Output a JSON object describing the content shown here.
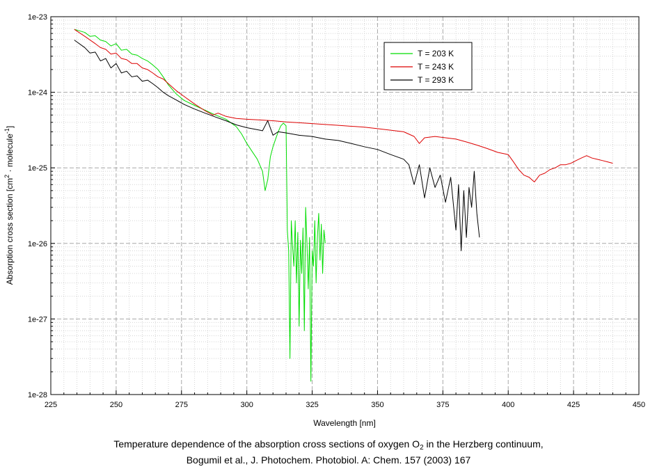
{
  "chart_data": {
    "type": "line",
    "xlabel": "Wavelength [nm]",
    "ylabel": {
      "prefix": "Absorption cross section [cm",
      "sup1": "2",
      "mid": " · molecule",
      "sup2": "-1",
      "suffix": "]"
    },
    "xlim": [
      225,
      450
    ],
    "ylim": [
      1e-28,
      1e-23
    ],
    "yscale": "log",
    "grid": true,
    "legend_position": "top-right",
    "x_ticks": [
      225,
      250,
      275,
      300,
      325,
      350,
      375,
      400,
      425,
      450
    ],
    "x_tick_labels": [
      "225",
      "250",
      "275",
      "300",
      "325",
      "350",
      "375",
      "400",
      "425",
      "450"
    ],
    "y_ticks": [
      1e-23,
      1e-24,
      1e-25,
      1e-26,
      1e-27,
      1e-28
    ],
    "y_tick_labels": [
      "1e-23",
      "1e-24",
      "1e-25",
      "1e-26",
      "1e-27",
      "1e-28"
    ],
    "series": [
      {
        "name": "T = 203 K",
        "color": "#00dd00",
        "points": [
          [
            234,
            6.8e-24
          ],
          [
            238,
            6.2e-24
          ],
          [
            240,
            5.5e-24
          ],
          [
            242,
            5.6e-24
          ],
          [
            244,
            4.9e-24
          ],
          [
            246,
            4.7e-24
          ],
          [
            248,
            4.1e-24
          ],
          [
            250,
            4.4e-24
          ],
          [
            252,
            3.6e-24
          ],
          [
            254,
            3.7e-24
          ],
          [
            256,
            3.2e-24
          ],
          [
            258,
            3.1e-24
          ],
          [
            260,
            2.8e-24
          ],
          [
            262,
            2.6e-24
          ],
          [
            264,
            2.3e-24
          ],
          [
            266,
            2e-24
          ],
          [
            268,
            1.6e-24
          ],
          [
            270,
            1.25e-24
          ],
          [
            273,
            9.5e-25
          ],
          [
            276,
            7.8e-25
          ],
          [
            280,
            6.7e-25
          ],
          [
            284,
            5.8e-25
          ],
          [
            288,
            5e-25
          ],
          [
            292,
            4.4e-25
          ],
          [
            296,
            3.5e-25
          ],
          [
            298,
            2.8e-25
          ],
          [
            300,
            2.1e-25
          ],
          [
            302,
            1.65e-25
          ],
          [
            304,
            1.3e-25
          ],
          [
            306,
            9e-26
          ],
          [
            307,
            5e-26
          ],
          [
            308,
            7e-26
          ],
          [
            309,
            1.4e-25
          ],
          [
            310,
            1.9e-25
          ],
          [
            311,
            2.4e-25
          ],
          [
            312,
            3e-25
          ],
          [
            313,
            3.6e-25
          ],
          [
            314,
            3.9e-25
          ],
          [
            315,
            3.6e-25
          ],
          [
            315.5,
            1.5e-26
          ],
          [
            316,
            8e-27
          ],
          [
            316.5,
            3e-28
          ],
          [
            317,
            2e-26
          ],
          [
            317.5,
            9e-27
          ],
          [
            318,
            5e-27
          ],
          [
            318.5,
            2e-26
          ],
          [
            319,
            3e-27
          ],
          [
            319.5,
            1.4e-26
          ],
          [
            320,
            8e-28
          ],
          [
            320.5,
            1.1e-26
          ],
          [
            321,
            4e-27
          ],
          [
            321.5,
            1.6e-26
          ],
          [
            322,
            7e-28
          ],
          [
            322.5,
            3e-26
          ],
          [
            323,
            1e-26
          ],
          [
            323.5,
            2.5e-27
          ],
          [
            324,
            1.2e-26
          ],
          [
            324.5,
            1.5e-28
          ],
          [
            325,
            8e-27
          ],
          [
            325.5,
            5e-27
          ],
          [
            326,
            2e-26
          ],
          [
            326.5,
            3e-27
          ],
          [
            327,
            1.2e-26
          ],
          [
            327.5,
            2.5e-26
          ],
          [
            328,
            6e-27
          ],
          [
            328.5,
            1.8e-26
          ],
          [
            329,
            4e-27
          ],
          [
            329.5,
            1.5e-26
          ],
          [
            330,
            1e-26
          ]
        ]
      },
      {
        "name": "T = 243 K",
        "color": "#dd0000",
        "points": [
          [
            234,
            6.8e-24
          ],
          [
            238,
            5.5e-24
          ],
          [
            242,
            4.4e-24
          ],
          [
            244,
            3.9e-24
          ],
          [
            246,
            3.7e-24
          ],
          [
            248,
            3.2e-24
          ],
          [
            250,
            3.3e-24
          ],
          [
            252,
            2.8e-24
          ],
          [
            254,
            2.7e-24
          ],
          [
            256,
            2.4e-24
          ],
          [
            258,
            2.4e-24
          ],
          [
            260,
            2.1e-24
          ],
          [
            262,
            2e-24
          ],
          [
            264,
            1.8e-24
          ],
          [
            266,
            1.6e-24
          ],
          [
            268,
            1.5e-24
          ],
          [
            270,
            1.3e-24
          ],
          [
            273,
            1.05e-24
          ],
          [
            276,
            8.8e-25
          ],
          [
            280,
            7e-25
          ],
          [
            284,
            5.7e-25
          ],
          [
            287,
            5e-25
          ],
          [
            289,
            5.3e-25
          ],
          [
            292,
            4.8e-25
          ],
          [
            296,
            4.5e-25
          ],
          [
            300,
            4.4e-25
          ],
          [
            305,
            4.3e-25
          ],
          [
            310,
            4.2e-25
          ],
          [
            315,
            4.05e-25
          ],
          [
            320,
            3.95e-25
          ],
          [
            325,
            3.85e-25
          ],
          [
            330,
            3.75e-25
          ],
          [
            335,
            3.65e-25
          ],
          [
            340,
            3.55e-25
          ],
          [
            345,
            3.45e-25
          ],
          [
            350,
            3.3e-25
          ],
          [
            355,
            3.15e-25
          ],
          [
            360,
            3e-25
          ],
          [
            364,
            2.6e-25
          ],
          [
            366,
            2.1e-25
          ],
          [
            368,
            2.5e-25
          ],
          [
            372,
            2.6e-25
          ],
          [
            376,
            2.5e-25
          ],
          [
            380,
            2.4e-25
          ],
          [
            384,
            2.2e-25
          ],
          [
            388,
            2e-25
          ],
          [
            392,
            1.8e-25
          ],
          [
            396,
            1.6e-25
          ],
          [
            400,
            1.5e-25
          ],
          [
            402,
            1.2e-25
          ],
          [
            404,
            9.5e-26
          ],
          [
            406,
            8e-26
          ],
          [
            408,
            7.5e-26
          ],
          [
            410,
            6.5e-26
          ],
          [
            412,
            8e-26
          ],
          [
            414,
            8.5e-26
          ],
          [
            416,
            9.5e-26
          ],
          [
            418,
            1e-25
          ],
          [
            420,
            1.1e-25
          ],
          [
            422,
            1.1e-25
          ],
          [
            424,
            1.15e-25
          ],
          [
            426,
            1.25e-25
          ],
          [
            428,
            1.35e-25
          ],
          [
            430,
            1.45e-25
          ],
          [
            432,
            1.35e-25
          ],
          [
            434,
            1.3e-25
          ],
          [
            436,
            1.25e-25
          ],
          [
            438,
            1.2e-25
          ],
          [
            440,
            1.15e-25
          ]
        ]
      },
      {
        "name": "T = 293 K",
        "color": "#000000",
        "points": [
          [
            234,
            4.9e-24
          ],
          [
            238,
            3.9e-24
          ],
          [
            240,
            3.3e-24
          ],
          [
            242,
            3.4e-24
          ],
          [
            244,
            2.6e-24
          ],
          [
            246,
            2.8e-24
          ],
          [
            248,
            2.1e-24
          ],
          [
            250,
            2.4e-24
          ],
          [
            252,
            1.8e-24
          ],
          [
            254,
            1.9e-24
          ],
          [
            256,
            1.6e-24
          ],
          [
            258,
            1.65e-24
          ],
          [
            260,
            1.4e-24
          ],
          [
            262,
            1.45e-24
          ],
          [
            264,
            1.3e-24
          ],
          [
            266,
            1.15e-24
          ],
          [
            268,
            1e-24
          ],
          [
            270,
            9e-25
          ],
          [
            273,
            7.9e-25
          ],
          [
            276,
            6.9e-25
          ],
          [
            280,
            6e-25
          ],
          [
            284,
            5.3e-25
          ],
          [
            288,
            4.7e-25
          ],
          [
            292,
            4.2e-25
          ],
          [
            296,
            3.7e-25
          ],
          [
            300,
            3.4e-25
          ],
          [
            304,
            3.2e-25
          ],
          [
            306,
            3.1e-25
          ],
          [
            308,
            4.2e-25
          ],
          [
            310,
            2.7e-25
          ],
          [
            312,
            3e-25
          ],
          [
            315,
            2.9e-25
          ],
          [
            320,
            2.7e-25
          ],
          [
            325,
            2.6e-25
          ],
          [
            330,
            2.4e-25
          ],
          [
            335,
            2.3e-25
          ],
          [
            340,
            2.1e-25
          ],
          [
            345,
            1.9e-25
          ],
          [
            350,
            1.75e-25
          ],
          [
            355,
            1.5e-25
          ],
          [
            360,
            1.3e-25
          ],
          [
            362,
            1.1e-25
          ],
          [
            364,
            6e-26
          ],
          [
            366,
            1.1e-25
          ],
          [
            368,
            4e-26
          ],
          [
            370,
            1e-25
          ],
          [
            372,
            5.5e-26
          ],
          [
            374,
            8e-26
          ],
          [
            376,
            3.5e-26
          ],
          [
            378,
            7.5e-26
          ],
          [
            380,
            1.5e-26
          ],
          [
            381,
            6e-26
          ],
          [
            382,
            8e-27
          ],
          [
            383,
            5e-26
          ],
          [
            384,
            1.2e-26
          ],
          [
            385,
            5.5e-26
          ],
          [
            386,
            3e-26
          ],
          [
            387,
            9e-26
          ],
          [
            388,
            2.5e-26
          ],
          [
            389,
            1.2e-26
          ]
        ]
      }
    ]
  },
  "caption": {
    "line1_prefix": "Temperature dependence of the absorption cross sections of oxygen O",
    "line1_sub": "2",
    "line1_suffix": " in the Herzberg continuum,",
    "line2": "Bogumil et al., J. Photochem. Photobiol. A: Chem. 157 (2003) 167"
  }
}
